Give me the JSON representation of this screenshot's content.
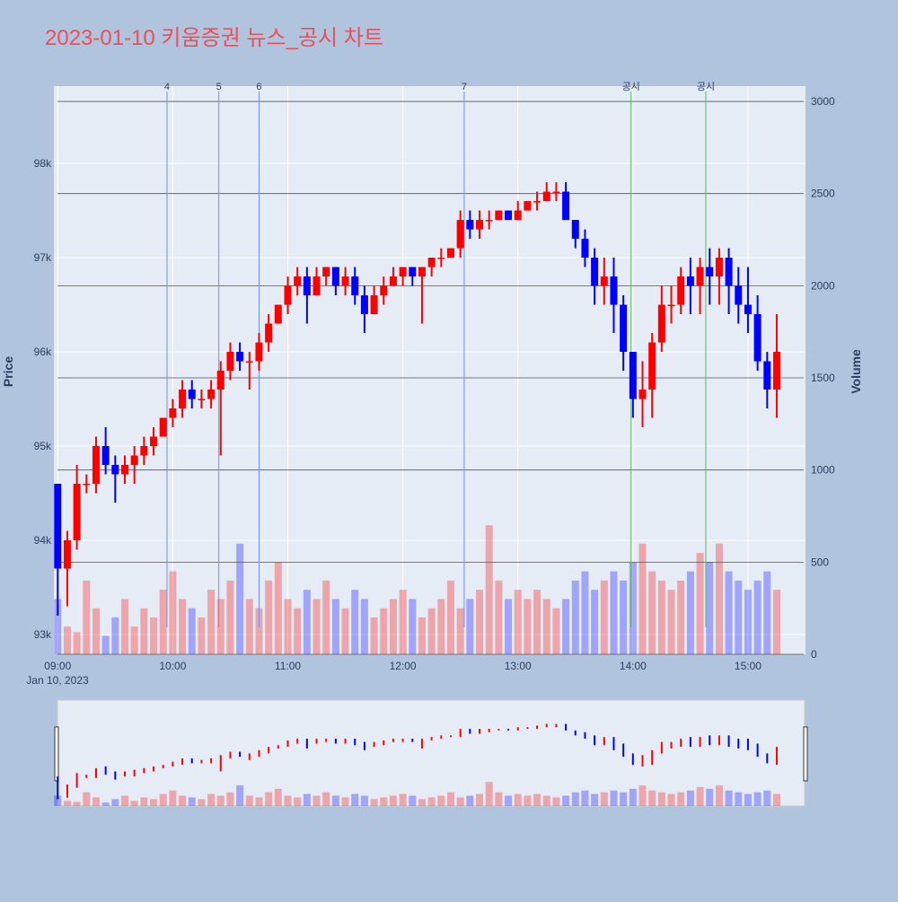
{
  "chart_data": {
    "type": "candlestick",
    "title": "2023-01-10 키움증권 뉴스_공시 차트",
    "y_title": "Price",
    "y2_title": "Volume",
    "x_sublabel": "Jan 10, 2023",
    "increasing_color": "#ff0000",
    "decreasing_color": "#0000ff",
    "xlim": [
      "08:58",
      "15:30"
    ],
    "xticks": [
      "09:00",
      "10:00",
      "11:00",
      "12:00",
      "13:00",
      "14:00",
      "15:00"
    ],
    "ylim": [
      92790,
      98820
    ],
    "yticks": [
      {
        "value": 93000,
        "label": "93k"
      },
      {
        "value": 94000,
        "label": "94k"
      },
      {
        "value": 95000,
        "label": "95k"
      },
      {
        "value": 96000,
        "label": "96k"
      },
      {
        "value": 97000,
        "label": "97k"
      },
      {
        "value": 98000,
        "label": "98k"
      }
    ],
    "y2lim": [
      0,
      3083
    ],
    "y2ticks": [
      0,
      500,
      1000,
      1500,
      2000,
      2500,
      3000
    ],
    "markers": [
      {
        "x": "09:57",
        "label": "4",
        "color": "#6f8ff0"
      },
      {
        "x": "10:24",
        "label": "5",
        "color": "#6f8ff0"
      },
      {
        "x": "10:45",
        "label": "6",
        "color": "#6f8ff0"
      },
      {
        "x": "12:32",
        "label": "7",
        "color": "#6f8ff0"
      },
      {
        "x": "13:59",
        "label": "공시",
        "color": "#5cb85c"
      },
      {
        "x": "14:38",
        "label": "공시",
        "color": "#5cb85c"
      }
    ],
    "x": [
      "09:00",
      "09:05",
      "09:10",
      "09:15",
      "09:20",
      "09:25",
      "09:30",
      "09:35",
      "09:40",
      "09:45",
      "09:50",
      "09:55",
      "10:00",
      "10:05",
      "10:10",
      "10:15",
      "10:20",
      "10:25",
      "10:30",
      "10:35",
      "10:40",
      "10:45",
      "10:50",
      "10:55",
      "11:00",
      "11:05",
      "11:10",
      "11:15",
      "11:20",
      "11:25",
      "11:30",
      "11:35",
      "11:40",
      "11:45",
      "11:50",
      "11:55",
      "12:00",
      "12:05",
      "12:10",
      "12:15",
      "12:20",
      "12:25",
      "12:30",
      "12:35",
      "12:40",
      "12:45",
      "12:50",
      "12:55",
      "13:00",
      "13:05",
      "13:10",
      "13:15",
      "13:20",
      "13:25",
      "13:30",
      "13:35",
      "13:40",
      "13:45",
      "13:50",
      "13:55",
      "14:00",
      "14:05",
      "14:10",
      "14:15",
      "14:20",
      "14:25",
      "14:30",
      "14:35",
      "14:40",
      "14:45",
      "14:50",
      "14:55",
      "15:00",
      "15:05",
      "15:10",
      "15:15"
    ],
    "open": [
      94600,
      93700,
      94000,
      94600,
      94600,
      95000,
      94800,
      94700,
      94800,
      94900,
      95000,
      95100,
      95300,
      95400,
      95600,
      95500,
      95500,
      95600,
      95800,
      96000,
      95900,
      95900,
      96100,
      96300,
      96500,
      96700,
      96800,
      96600,
      96800,
      96900,
      96700,
      96800,
      96600,
      96400,
      96600,
      96700,
      96800,
      96900,
      96800,
      96900,
      97000,
      97000,
      97100,
      97400,
      97300,
      97400,
      97400,
      97500,
      97400,
      97500,
      97600,
      97600,
      97700,
      97700,
      97400,
      97200,
      97000,
      96700,
      96800,
      96500,
      96000,
      95500,
      95600,
      96100,
      96500,
      96500,
      96800,
      96700,
      96900,
      96800,
      97000,
      96700,
      96500,
      96400,
      95900,
      95600
    ],
    "high": [
      94600,
      94100,
      94800,
      94700,
      95100,
      95200,
      94900,
      94900,
      95000,
      95100,
      95200,
      95300,
      95500,
      95700,
      95700,
      95600,
      95700,
      95900,
      96100,
      96100,
      96000,
      96200,
      96400,
      96500,
      96800,
      96900,
      96900,
      96900,
      96900,
      96900,
      96900,
      96900,
      96700,
      96700,
      96800,
      96900,
      96900,
      96900,
      96900,
      97000,
      97100,
      97100,
      97500,
      97500,
      97500,
      97500,
      97500,
      97500,
      97600,
      97600,
      97700,
      97800,
      97800,
      97800,
      97400,
      97300,
      97100,
      97000,
      97000,
      96600,
      96000,
      95900,
      96200,
      96700,
      96700,
      96900,
      97000,
      97000,
      97100,
      97100,
      97100,
      96900,
      96900,
      96600,
      96000,
      96400
    ],
    "low": [
      93200,
      93300,
      93900,
      94500,
      94500,
      94700,
      94400,
      94600,
      94600,
      94800,
      94900,
      95100,
      95200,
      95300,
      95400,
      95400,
      95400,
      94900,
      95700,
      95800,
      95600,
      95800,
      96000,
      96300,
      96400,
      96600,
      96300,
      96600,
      96700,
      96600,
      96600,
      96500,
      96200,
      96400,
      96500,
      96700,
      96700,
      96700,
      96300,
      96800,
      96900,
      97000,
      97000,
      97200,
      97200,
      97300,
      97400,
      97400,
      97400,
      97500,
      97500,
      97600,
      97600,
      97400,
      97100,
      96900,
      96500,
      96500,
      96200,
      95800,
      95300,
      95200,
      95300,
      96000,
      96300,
      96400,
      96400,
      96400,
      96500,
      96500,
      96400,
      96300,
      96200,
      95800,
      95400,
      95300
    ],
    "close": [
      93700,
      94000,
      94600,
      94600,
      95000,
      94800,
      94700,
      94800,
      94900,
      95000,
      95100,
      95300,
      95400,
      95600,
      95500,
      95500,
      95600,
      95800,
      96000,
      95900,
      95900,
      96100,
      96300,
      96500,
      96700,
      96800,
      96600,
      96800,
      96900,
      96700,
      96800,
      96600,
      96400,
      96600,
      96700,
      96800,
      96900,
      96800,
      96900,
      97000,
      97000,
      97100,
      97400,
      97300,
      97400,
      97400,
      97500,
      97400,
      97500,
      97600,
      97600,
      97700,
      97700,
      97400,
      97200,
      97000,
      96700,
      96800,
      96500,
      96000,
      95500,
      95600,
      96100,
      96500,
      96500,
      96800,
      96700,
      96900,
      96800,
      97000,
      96700,
      96500,
      96400,
      95900,
      95600,
      96000
    ],
    "volume": [
      300,
      150,
      120,
      400,
      250,
      100,
      200,
      300,
      150,
      250,
      200,
      350,
      450,
      300,
      250,
      200,
      350,
      300,
      400,
      600,
      300,
      250,
      400,
      500,
      300,
      250,
      350,
      300,
      400,
      300,
      250,
      350,
      300,
      200,
      250,
      300,
      350,
      300,
      200,
      250,
      300,
      400,
      250,
      300,
      350,
      700,
      400,
      300,
      350,
      300,
      350,
      300,
      250,
      300,
      400,
      450,
      350,
      400,
      450,
      400,
      500,
      600,
      450,
      400,
      350,
      400,
      450,
      550,
      500,
      600,
      450,
      400,
      350,
      400,
      450,
      350
    ]
  }
}
